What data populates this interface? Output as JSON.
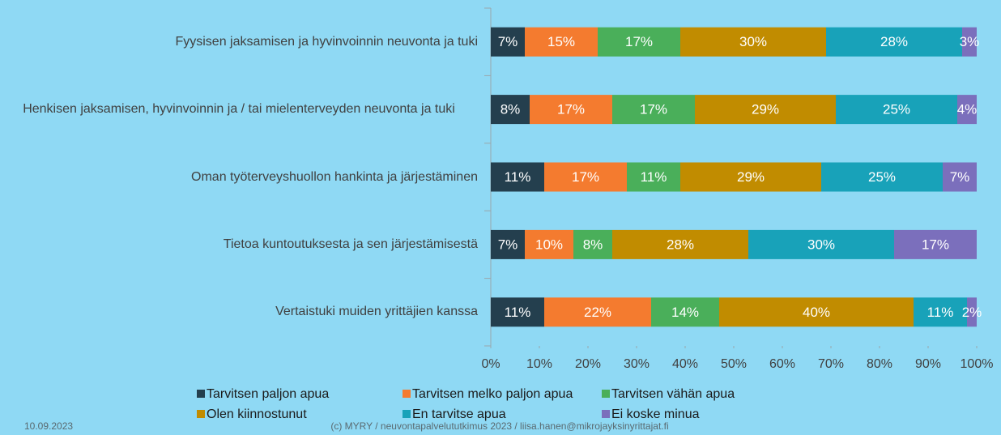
{
  "chart_data": {
    "type": "stacked-bar-horizontal",
    "categories": [
      "Fyysisen jaksamisen ja hyvinvoinnin neuvonta ja tuki",
      "Henkisen jaksamisen, hyvinvoinnin ja / tai mielenterveyden neuvonta ja tuki",
      "Oman työterveyshuollon hankinta ja järjestäminen",
      "Tietoa kuntoutuksesta ja sen järjestämisestä",
      "Vertaistuki muiden yrittäjien kanssa"
    ],
    "series": [
      {
        "name": "Tarvitsen paljon apua",
        "color": "#243f4e",
        "values": [
          7,
          8,
          11,
          7,
          11
        ],
        "value_labels": [
          "7%",
          "8%",
          "11%",
          "7%",
          "11%"
        ]
      },
      {
        "name": "Tarvitsen melko paljon apua",
        "color": "#f47b2f",
        "values": [
          15,
          17,
          17,
          10,
          22
        ],
        "value_labels": [
          "15%",
          "17%",
          "17%",
          "10%",
          "22%"
        ]
      },
      {
        "name": "Tarvitsen vähän apua",
        "color": "#4aaf5a",
        "values": [
          17,
          17,
          11,
          8,
          14
        ],
        "value_labels": [
          "17%",
          "17%",
          "11%",
          "8%",
          "14%"
        ]
      },
      {
        "name": "Olen kiinnostunut",
        "color": "#c18c00",
        "values": [
          30,
          29,
          29,
          28,
          40
        ],
        "value_labels": [
          "30%",
          "29%",
          "29%",
          "28%",
          "40%"
        ]
      },
      {
        "name": "En tarvitse apua",
        "color": "#18a2b9",
        "values": [
          28,
          25,
          25,
          30,
          11
        ],
        "value_labels": [
          "28%",
          "25%",
          "25%",
          "30%",
          "11%"
        ]
      },
      {
        "name": "Ei koske minua",
        "color": "#7b6fbc",
        "values": [
          3,
          4,
          7,
          17,
          2
        ],
        "value_labels": [
          "3%",
          "4%",
          "7%",
          "17%",
          "2%"
        ]
      }
    ],
    "xlim": [
      0,
      100
    ],
    "xticks": [
      {
        "value": 0,
        "label": "0%"
      },
      {
        "value": 10,
        "label": "10%"
      },
      {
        "value": 20,
        "label": "20%"
      },
      {
        "value": 30,
        "label": "30%"
      },
      {
        "value": 40,
        "label": "40%"
      },
      {
        "value": 50,
        "label": "50%"
      },
      {
        "value": 60,
        "label": "60%"
      },
      {
        "value": 70,
        "label": "70%"
      },
      {
        "value": 80,
        "label": "80%"
      },
      {
        "value": 90,
        "label": "90%"
      },
      {
        "value": 100,
        "label": "100%"
      }
    ]
  },
  "footer": {
    "date": "10.09.2023",
    "source": "(c) MYRY / neuvontapalvelututkimus 2023 / liisa.hanen@mikrojayksinyrittajat.fi"
  }
}
